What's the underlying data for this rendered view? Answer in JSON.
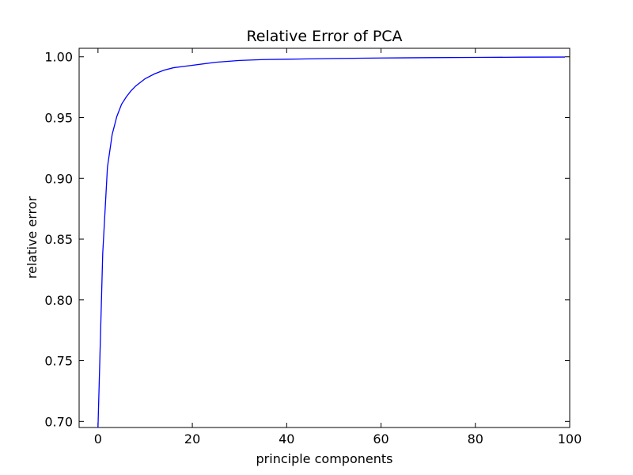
{
  "chart_data": {
    "type": "line",
    "title": "Relative Error of PCA",
    "xlabel": "principle components",
    "ylabel": "relative error",
    "xlim": [
      -4,
      100
    ],
    "ylim": [
      0.695,
      1.007
    ],
    "xticks": [
      0,
      20,
      40,
      60,
      80,
      100
    ],
    "yticks": [
      0.7,
      0.75,
      0.8,
      0.85,
      0.9,
      0.95,
      1.0
    ],
    "xtick_labels": [
      "0",
      "20",
      "40",
      "60",
      "80",
      "100"
    ],
    "ytick_labels": [
      "0.70",
      "0.75",
      "0.80",
      "0.85",
      "0.90",
      "0.95",
      "1.00"
    ],
    "grid": false,
    "legend": "none",
    "series": [
      {
        "color": "#0000ff",
        "x": [
          0,
          1,
          2,
          3,
          4,
          5,
          6,
          7,
          8,
          9,
          10,
          12,
          14,
          16,
          18,
          20,
          25,
          30,
          35,
          40,
          50,
          60,
          70,
          80,
          90,
          99
        ],
        "y": [
          0.695,
          0.838,
          0.909,
          0.936,
          0.951,
          0.961,
          0.967,
          0.972,
          0.976,
          0.979,
          0.982,
          0.986,
          0.989,
          0.991,
          0.992,
          0.993,
          0.9955,
          0.997,
          0.9977,
          0.998,
          0.9986,
          0.999,
          0.9993,
          0.9995,
          0.9997,
          0.9998
        ]
      }
    ]
  }
}
